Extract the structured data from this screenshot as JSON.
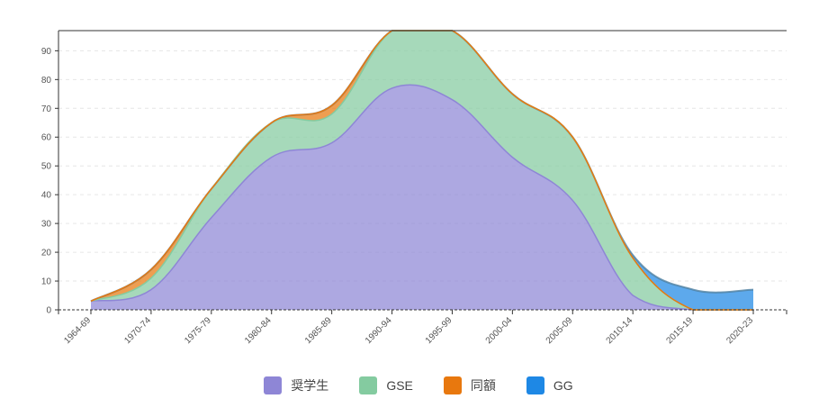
{
  "chart_data": {
    "type": "area",
    "stacked": true,
    "title": "",
    "xlabel": "",
    "ylabel": "",
    "categories": [
      "1964-69",
      "1970-74",
      "1975-79",
      "1980-84",
      "1985-89",
      "1990-94",
      "1995-99",
      "2000-04",
      "2005-09",
      "2010-14",
      "2015-19",
      "2020-23"
    ],
    "ylim": [
      0,
      97
    ],
    "yticks": [
      0,
      10,
      20,
      30,
      40,
      50,
      60,
      70,
      80,
      90
    ],
    "grid": true,
    "legend_position": "bottom",
    "series": [
      {
        "name": "奨学生",
        "color": "#8e86d6",
        "values": [
          3,
          7,
          32,
          53,
          58,
          77,
          73,
          53,
          38,
          5,
          0,
          0
        ]
      },
      {
        "name": "GSE",
        "color": "#84cba0",
        "values": [
          0,
          4,
          10,
          12,
          10,
          20,
          24,
          22,
          22,
          13,
          0,
          0
        ]
      },
      {
        "name": "同額",
        "color": "#e8780e",
        "values": [
          0,
          3,
          0,
          0,
          3,
          0,
          0,
          0,
          0,
          0,
          0,
          0
        ]
      },
      {
        "name": "GG",
        "color": "#1e88e5",
        "values": [
          0,
          0,
          0,
          0,
          0,
          0,
          0,
          0,
          0,
          1,
          7,
          7
        ]
      }
    ]
  }
}
